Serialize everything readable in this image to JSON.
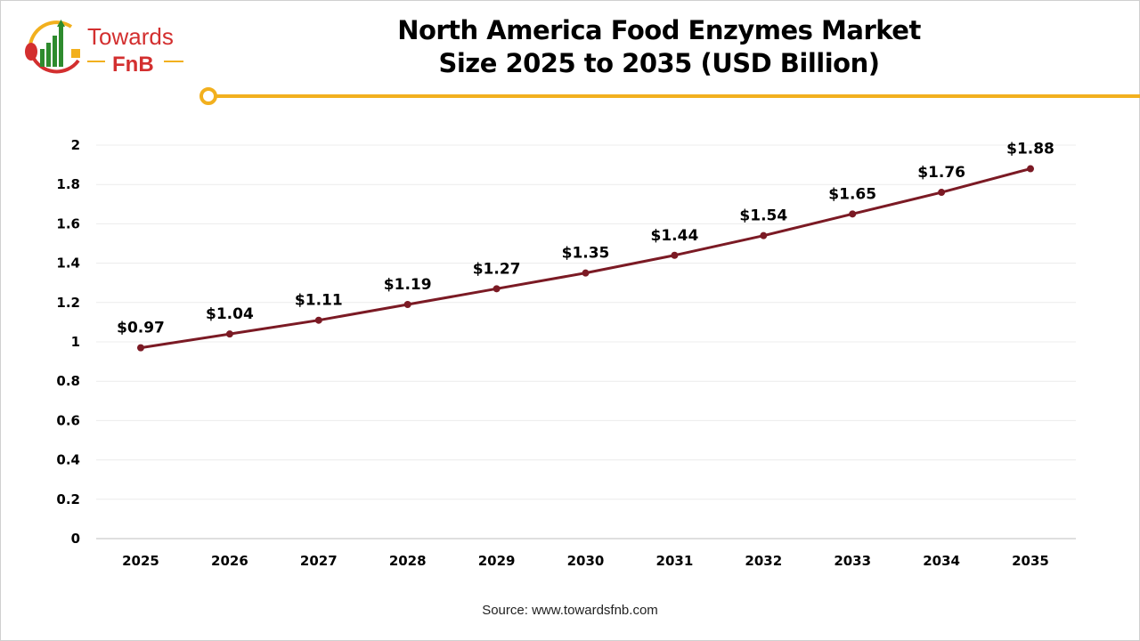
{
  "brand": {
    "name_line1": "Towards",
    "name_line2": "FnB",
    "accent": "#F2B01E",
    "red": "#D32F2F",
    "green": "#2E8B2E"
  },
  "title_line1": "North America Food Enzymes Market",
  "title_line2": "Size 2025 to 2035 (USD Billion)",
  "source": "Source: www.towardsfnb.com",
  "chart_data": {
    "type": "line",
    "title": "North America Food Enzymes Market Size 2025 to 2035 (USD Billion)",
    "categories": [
      "2025",
      "2026",
      "2027",
      "2028",
      "2029",
      "2030",
      "2031",
      "2032",
      "2033",
      "2034",
      "2035"
    ],
    "series": [
      {
        "values": [
          0.97,
          1.04,
          1.11,
          1.19,
          1.27,
          1.35,
          1.44,
          1.54,
          1.65,
          1.76,
          1.88
        ],
        "labels": [
          "$0.97",
          "$1.04",
          "$1.11",
          "$1.19",
          "$1.27",
          "$1.35",
          "$1.44",
          "$1.54",
          "$1.65",
          "$1.76",
          "$1.88"
        ],
        "color": "#7B1A24"
      }
    ],
    "yticks": [
      "0",
      "0.2",
      "0.4",
      "0.6",
      "0.8",
      "1",
      "1.2",
      "1.4",
      "1.6",
      "1.8",
      "2"
    ],
    "ylim": [
      0,
      2
    ],
    "grid": true,
    "legend": "none"
  }
}
